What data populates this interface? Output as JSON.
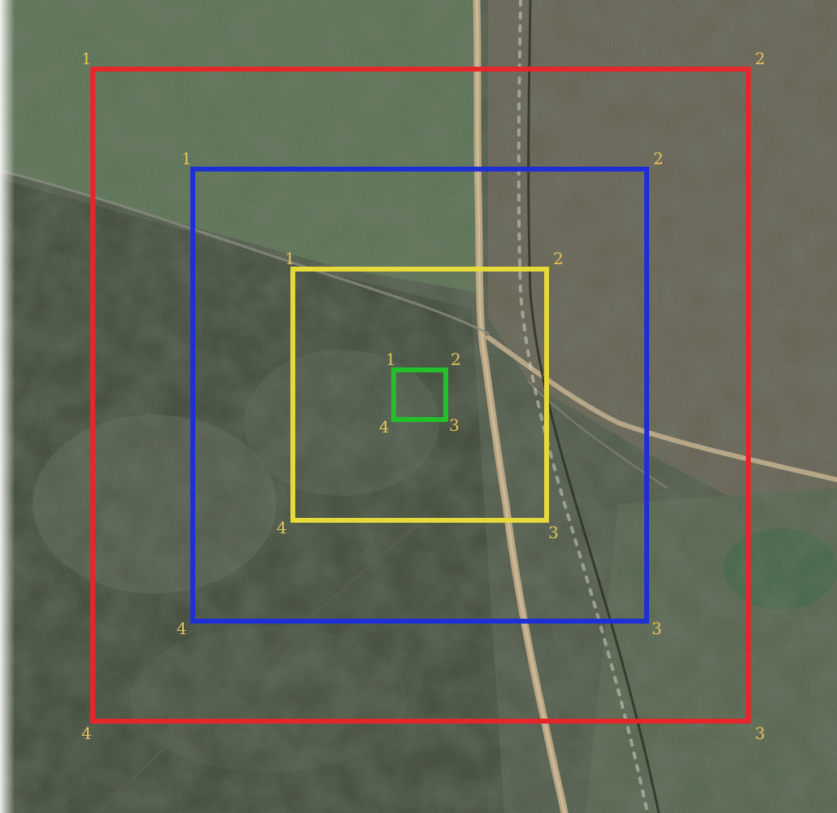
{
  "map": {
    "colors": {
      "grass": "#4f6547",
      "scrub_dark": "#2f3a2c",
      "scrub_mid": "#4a5442",
      "bare_brown": "#6b5d4a",
      "road": "#b8a583",
      "label": "#e8c45a"
    },
    "squares": [
      {
        "name": "red",
        "color": "#e8262a",
        "corners": [
          "1",
          "2",
          "3",
          "4"
        ]
      },
      {
        "name": "blue",
        "color": "#1f2fd6",
        "corners": [
          "1",
          "2",
          "3",
          "4"
        ]
      },
      {
        "name": "yellow",
        "color": "#e6d93a",
        "corners": [
          "1",
          "2",
          "3",
          "4"
        ]
      },
      {
        "name": "green",
        "color": "#22c02a",
        "corners": [
          "1",
          "2",
          "3",
          "4"
        ]
      }
    ]
  }
}
